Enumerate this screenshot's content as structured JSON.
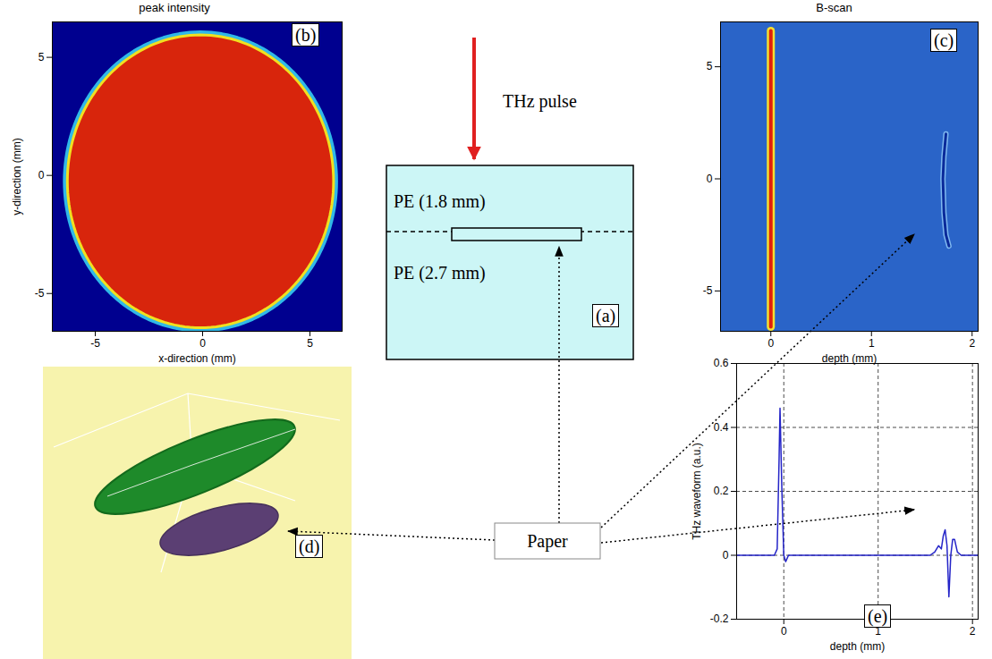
{
  "chart_data": [
    {
      "type": "heatmap",
      "letter": "(b)",
      "title": "peak intensity",
      "x_label": "x-direction (mm)",
      "y_label": "y-direction (mm)",
      "xlim": [
        -7,
        6.5
      ],
      "ylim": [
        -6.6,
        6.5
      ],
      "xticks": [
        -5,
        0,
        5
      ],
      "yticks": [
        -5,
        0,
        5
      ],
      "beam_spot": {
        "center_x": -0.1,
        "center_y": -0.25,
        "radius": 6.2
      }
    },
    {
      "type": "image",
      "letter": "(c)",
      "title": "B-scan",
      "x_label": "depth (mm)",
      "xlim": [
        -0.5,
        2.06
      ],
      "ylim": [
        -6.8,
        7
      ],
      "xticks": [
        0,
        1,
        2
      ],
      "yticks": [
        -5,
        0,
        5
      ],
      "series": [
        {
          "color": "#e0200a",
          "x": [
            0,
            0
          ],
          "values": [
            -6.6,
            6.6
          ]
        },
        {
          "color": "#0a2a9a",
          "x": [
            1.74,
            1.72,
            1.71,
            1.72,
            1.74,
            1.77
          ],
          "values": [
            2,
            1,
            0,
            -1.5,
            -2.5,
            -3
          ]
        }
      ]
    },
    {
      "type": "line",
      "letter": "(e)",
      "x_label": "depth (mm)",
      "y_label": "THz waveform (a.u.)",
      "xlim": [
        -0.5,
        2.06
      ],
      "ylim": [
        -0.2,
        0.6
      ],
      "xticks": [
        0,
        1,
        2
      ],
      "yticks": [
        -0.2,
        0,
        0.2,
        0.4,
        0.6
      ],
      "grid": true,
      "color": "#2424c8",
      "x": [
        -0.5,
        -0.1,
        -0.07,
        -0.05,
        -0.04,
        -0.02,
        0,
        0.02,
        0.05,
        0.5,
        1.0,
        1.55,
        1.6,
        1.64,
        1.67,
        1.69,
        1.71,
        1.73,
        1.75,
        1.77,
        1.79,
        1.81,
        1.84,
        1.88,
        2.06
      ],
      "values": [
        0,
        0,
        0.02,
        0.3,
        0.46,
        0.2,
        0,
        -0.02,
        0,
        0,
        0,
        0,
        0.01,
        0.03,
        0.02,
        0.06,
        0.08,
        0.03,
        -0.13,
        0,
        0.05,
        0.05,
        0.01,
        0,
        0
      ]
    }
  ],
  "diagram": {
    "a": {
      "letter": "(a)",
      "beam_label": "THz pulse",
      "layers": [
        "PE (1.8 mm)",
        "PE (2.7 mm)"
      ]
    },
    "d": {
      "letter": "(d)"
    },
    "callout": {
      "label": "Paper"
    }
  }
}
